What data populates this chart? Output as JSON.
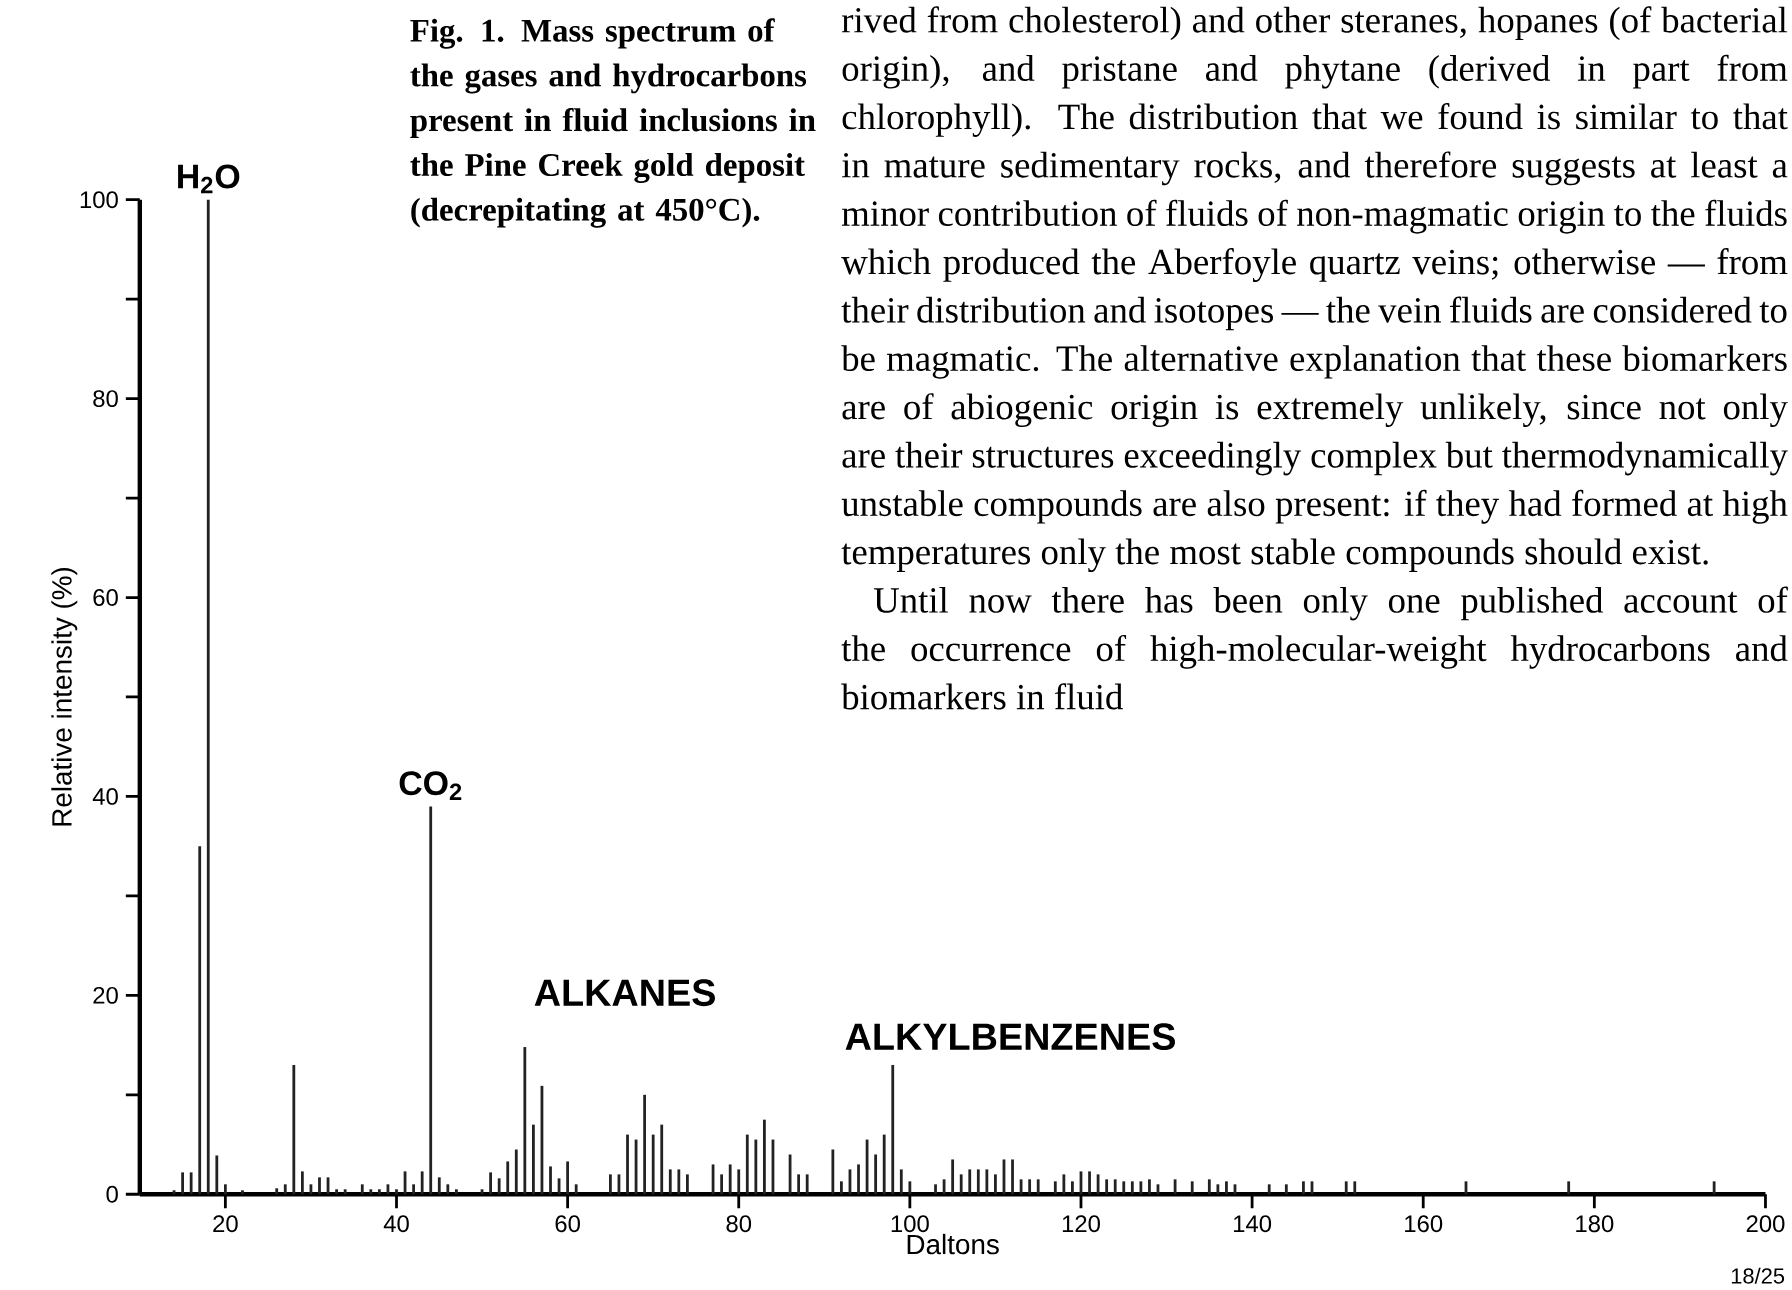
{
  "chart_data": {
    "type": "bar",
    "title": "Fig. 1. Mass spectrum of the gases and hydrocarbons present in fluid inclusions in the Pine Creek gold deposit (decrepitating at 450°C).",
    "xlabel": "Daltons",
    "ylabel": "Relative intensity (%)",
    "x": [
      14,
      15,
      16,
      17,
      18,
      19,
      20,
      22,
      26,
      27,
      28,
      29,
      30,
      31,
      32,
      33,
      34,
      36,
      37,
      38,
      39,
      40,
      41,
      42,
      43,
      44,
      45,
      46,
      47,
      50,
      51,
      52,
      53,
      54,
      55,
      56,
      57,
      58,
      59,
      60,
      61,
      65,
      66,
      67,
      68,
      69,
      70,
      71,
      72,
      73,
      74,
      77,
      78,
      79,
      80,
      81,
      82,
      83,
      84,
      86,
      87,
      88,
      91,
      92,
      93,
      94,
      95,
      96,
      97,
      98,
      99,
      100,
      103,
      104,
      105,
      106,
      107,
      108,
      109,
      110,
      111,
      112,
      113,
      114,
      115,
      117,
      118,
      119,
      120,
      121,
      122,
      123,
      124,
      125,
      126,
      127,
      128,
      129,
      131,
      133,
      135,
      136,
      137,
      138,
      142,
      144,
      146,
      147,
      151,
      152,
      165,
      177,
      194
    ],
    "values": [
      0.4,
      2.2,
      2.2,
      35,
      100,
      3.9,
      1,
      0.4,
      0.6,
      1,
      13,
      2.3,
      1,
      1.7,
      1.7,
      0.5,
      0.5,
      1,
      0.5,
      0.5,
      1,
      0.5,
      2.3,
      1,
      2.3,
      39,
      1.7,
      1,
      0.5,
      0.5,
      2.2,
      1.6,
      3.3,
      4.5,
      14.8,
      7,
      10.9,
      2.8,
      1.6,
      3.3,
      1,
      2,
      2,
      6,
      5.5,
      10,
      6,
      7,
      2.5,
      2.5,
      2,
      3,
      2,
      3,
      2.5,
      6,
      5.5,
      7.5,
      5.5,
      4,
      2,
      2,
      4.5,
      1.3,
      2.5,
      3,
      5.5,
      4,
      6,
      13,
      2.5,
      1.3,
      1,
      1.5,
      3.5,
      2,
      2.5,
      2.5,
      2.5,
      2,
      3.5,
      3.5,
      1.5,
      1.5,
      1.5,
      1.3,
      2,
      1.3,
      2.3,
      2.3,
      2,
      1.5,
      1.5,
      1.3,
      1.3,
      1.3,
      1.5,
      1,
      1.5,
      1.3,
      1.5,
      1,
      1.3,
      1,
      1,
      1,
      1.3,
      1.3,
      1.3,
      1.3,
      1.3,
      1.3,
      1.3
    ],
    "color": "#222222",
    "xlim": [
      10,
      200
    ],
    "xticks": [
      20,
      40,
      60,
      80,
      100,
      120,
      140,
      160,
      180,
      200
    ],
    "ylim": [
      0,
      100
    ],
    "yticks": [
      0,
      {
        "value": 10,
        "label": null
      },
      20,
      {
        "value": 30,
        "label": null
      },
      40,
      {
        "value": 50,
        "label": null
      },
      60,
      {
        "value": 70,
        "label": null
      },
      80,
      {
        "value": 90,
        "label": null
      },
      100
    ],
    "annotations": [
      {
        "text": "H$_{2}$O",
        "x": 18,
        "y": 100
      },
      {
        "text": "CO$_{2}$",
        "x": 44,
        "y": 39
      },
      "ALKANES",
      "ALKYLBENZENES",
      "rived from cholesterol) and other steranes, hopanes (of bacterial origin), and pristane and phytane (derived in part from chlorophyll). The distribution that we found is similar to that in mature sedimentary rocks, and therefore suggests at least a minor contribution of fluids of non-magmatic origin to the fluids which produced the Aberfoyle quartz veins; otherwise — from their distribution and isotopes — the vein fluids are considered to be magmatic. The alternative explanation that these biomarkers are of abiogenic origin is extremely unlikely, since not only are their structures exceedingly complex but thermodynamically unstable compounds are also present: if they had formed at high temperatures only the most stable compounds should exist.",
      "Until now there has been only one published account of the occurrence of high-molecular-weight hydrocarbons and biomarkers in fluid",
      "18/25"
    ]
  }
}
